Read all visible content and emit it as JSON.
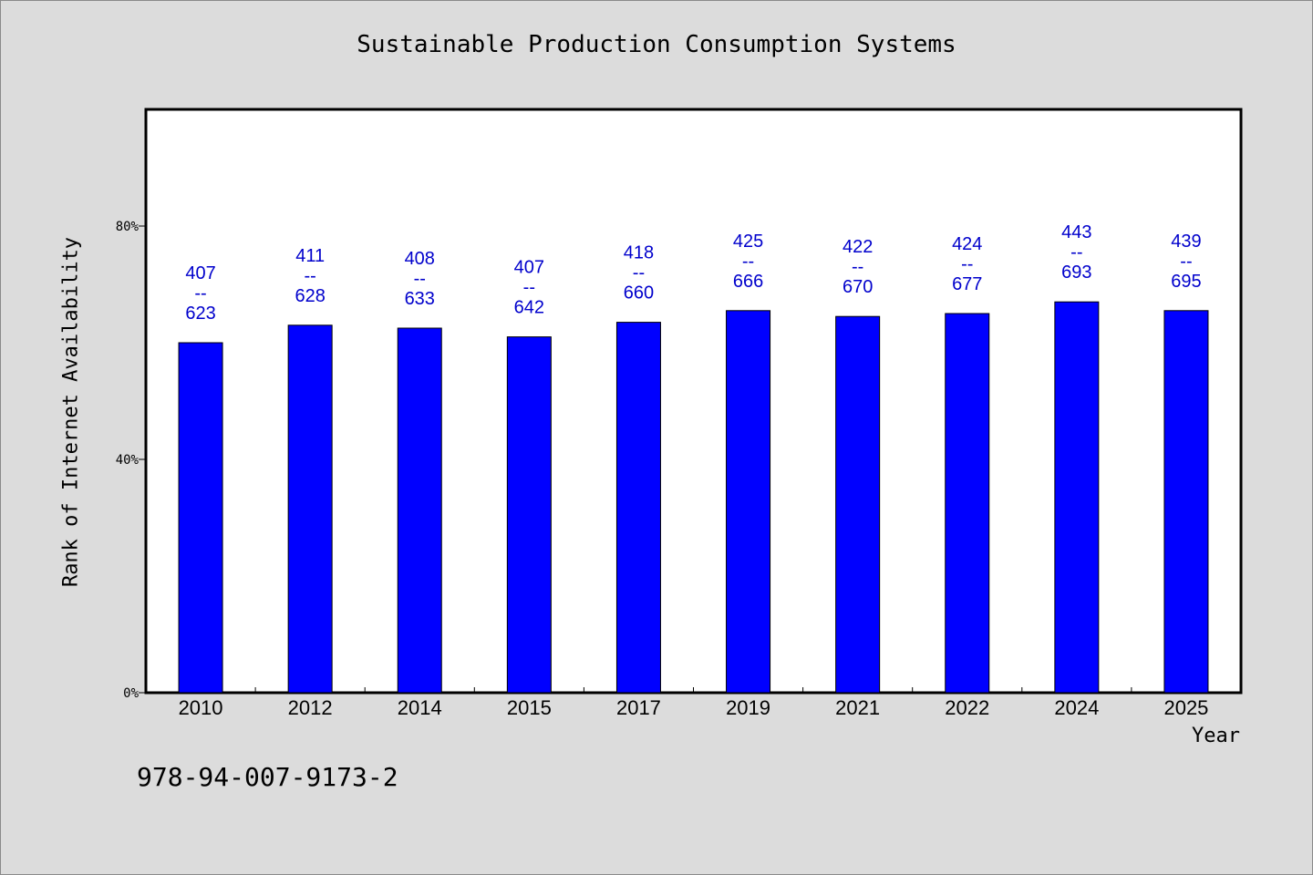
{
  "chart_data": {
    "type": "bar",
    "title": "Sustainable Production Consumption Systems",
    "xlabel": "Year",
    "ylabel": "Rank of Internet Availability",
    "categories": [
      "2010",
      "2012",
      "2014",
      "2015",
      "2017",
      "2019",
      "2021",
      "2022",
      "2024",
      "2025"
    ],
    "values": [
      0.6,
      0.63,
      0.625,
      0.61,
      0.635,
      0.655,
      0.645,
      0.65,
      0.67,
      0.655
    ],
    "data_labels": [
      [
        "407",
        "--",
        "623"
      ],
      [
        "411",
        "--",
        "628"
      ],
      [
        "408",
        "--",
        "633"
      ],
      [
        "407",
        "--",
        "642"
      ],
      [
        "418",
        "--",
        "660"
      ],
      [
        "425",
        "--",
        "666"
      ],
      [
        "422",
        "--",
        "670"
      ],
      [
        "424",
        "--",
        "677"
      ],
      [
        "443",
        "--",
        "693"
      ],
      [
        "439",
        "--",
        "695"
      ]
    ],
    "yticks": [
      "0%",
      "40%",
      "80%"
    ],
    "ytick_values": [
      0,
      0.4,
      0.8
    ],
    "ylim": [
      0,
      1.0
    ],
    "grid": false,
    "colors": {
      "bar": "#0000ff",
      "data_label": "#0000cc",
      "background": "#dcdcdc",
      "plot": "#ffffff"
    }
  },
  "footer": {
    "isbn": "978-94-007-9173-2"
  }
}
